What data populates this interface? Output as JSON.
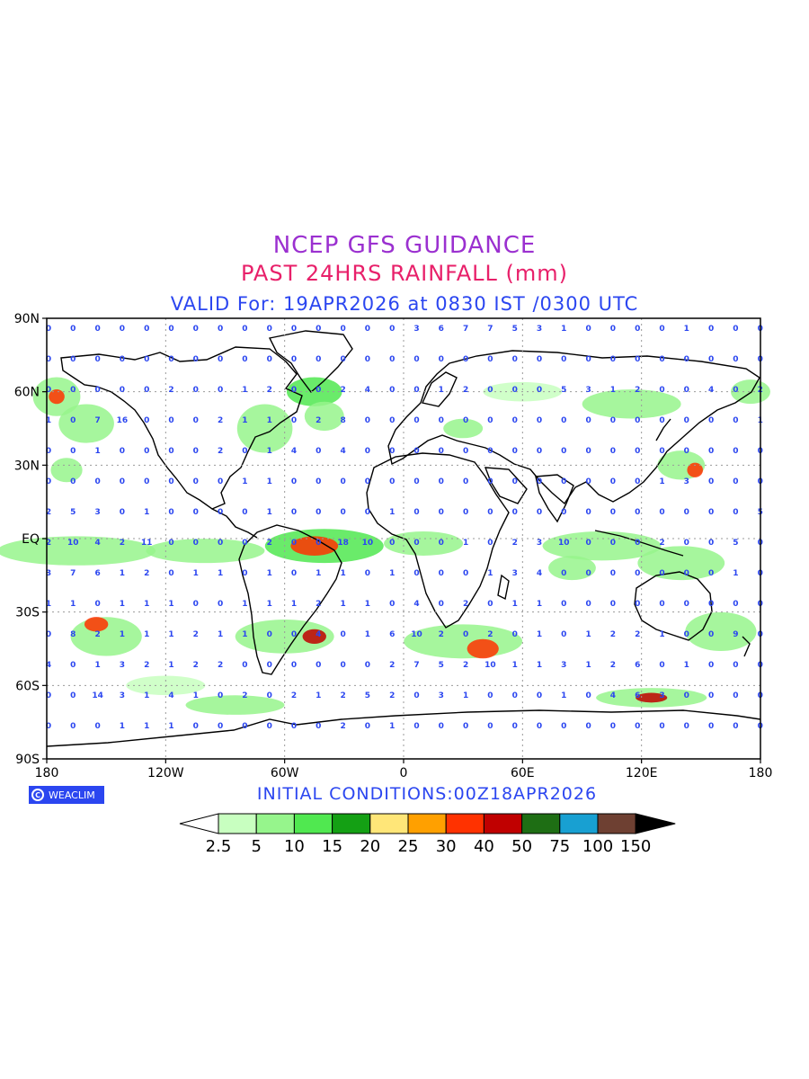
{
  "header": {
    "title": "NCEP GFS GUIDANCE",
    "subtitle": "PAST 24HRS RAINFALL (mm)",
    "valid": "VALID For: 19APR2026 at 0830 IST /0300 UTC"
  },
  "axes": {
    "lat_labels": [
      "90N",
      "60N",
      "30N",
      "EQ",
      "30S",
      "60S",
      "90S"
    ],
    "lat_values": [
      90,
      60,
      30,
      0,
      -30,
      -60,
      -90
    ],
    "lon_labels": [
      "180",
      "120W",
      "60W",
      "0",
      "60E",
      "120E",
      "180"
    ],
    "lon_values": [
      -180,
      -120,
      -60,
      0,
      60,
      120,
      180
    ]
  },
  "footer": {
    "brand": "WEACLIM",
    "initial": "INITIAL CONDITIONS:00Z18APR2026"
  },
  "legend": {
    "labels": [
      "2.5",
      "5",
      "10",
      "15",
      "20",
      "25",
      "30",
      "40",
      "50",
      "75",
      "100",
      "150"
    ],
    "colors": [
      "#ffffff",
      "#c8ffc0",
      "#96f58c",
      "#50e850",
      "#14a014",
      "#ffe678",
      "#ffa000",
      "#ff3200",
      "#c00000",
      "#1e6e14",
      "#18a0d2",
      "#6e4032",
      "#000000"
    ]
  },
  "map_colors": {
    "land_outline": "#000000",
    "grid": "#9a9a9a",
    "value_text": "#2b46f0"
  },
  "grid_values": [
    [
      "0",
      "0",
      "0",
      "0",
      "0",
      "0",
      "0",
      "0",
      "0",
      "0",
      "0",
      "0",
      "0",
      "0",
      "0",
      "3",
      "6",
      "7",
      "7",
      "5",
      "3",
      "1",
      "0",
      "0",
      "0",
      "0",
      "1",
      "0",
      "0",
      "0"
    ],
    [
      "0",
      "0",
      "0",
      "0",
      "0",
      "0",
      "0",
      "0",
      "0",
      "0",
      "0",
      "0",
      "0",
      "0",
      "0",
      "0",
      "0",
      "0",
      "0",
      "0",
      "0",
      "0",
      "0",
      "0",
      "0",
      "0",
      "0",
      "0",
      "0",
      "0"
    ],
    [
      "0",
      "0",
      "0",
      "0",
      "0",
      "2",
      "0",
      "0",
      "1",
      "2",
      "0",
      "0",
      "2",
      "4",
      "0",
      "0",
      "1",
      "2",
      "0",
      "0",
      "0",
      "5",
      "3",
      "1",
      "2",
      "0",
      "0",
      "4",
      "0",
      "2"
    ],
    [
      "1",
      "0",
      "7",
      "16",
      "0",
      "0",
      "0",
      "2",
      "1",
      "1",
      "0",
      "2",
      "8",
      "0",
      "0",
      "0",
      "0",
      "0",
      "0",
      "0",
      "0",
      "0",
      "0",
      "0",
      "0",
      "0",
      "0",
      "0",
      "0",
      "1"
    ],
    [
      "0",
      "0",
      "1",
      "0",
      "0",
      "0",
      "0",
      "2",
      "0",
      "1",
      "4",
      "0",
      "4",
      "0",
      "0",
      "0",
      "0",
      "0",
      "0",
      "0",
      "0",
      "0",
      "0",
      "0",
      "0",
      "0",
      "0",
      "0",
      "0",
      "0"
    ],
    [
      "0",
      "0",
      "0",
      "0",
      "0",
      "0",
      "0",
      "0",
      "1",
      "1",
      "0",
      "0",
      "0",
      "0",
      "0",
      "0",
      "0",
      "0",
      "0",
      "0",
      "0",
      "0",
      "0",
      "0",
      "0",
      "1",
      "3",
      "0",
      "0",
      "0"
    ],
    [
      "2",
      "5",
      "3",
      "0",
      "1",
      "0",
      "0",
      "0",
      "0",
      "1",
      "0",
      "0",
      "0",
      "0",
      "1",
      "0",
      "0",
      "0",
      "0",
      "0",
      "0",
      "0",
      "0",
      "0",
      "0",
      "0",
      "0",
      "0",
      "0",
      "5"
    ],
    [
      "2",
      "10",
      "4",
      "2",
      "11",
      "0",
      "0",
      "0",
      "0",
      "2",
      "0",
      "0",
      "18",
      "10",
      "0",
      "0",
      "0",
      "1",
      "0",
      "2",
      "3",
      "10",
      "0",
      "0",
      "0",
      "2",
      "0",
      "0",
      "5",
      "0"
    ],
    [
      "3",
      "7",
      "6",
      "1",
      "2",
      "0",
      "1",
      "1",
      "0",
      "1",
      "0",
      "1",
      "1",
      "0",
      "1",
      "0",
      "0",
      "0",
      "1",
      "3",
      "4",
      "0",
      "0",
      "0",
      "0",
      "0",
      "0",
      "0",
      "1",
      "0"
    ],
    [
      "1",
      "1",
      "0",
      "1",
      "1",
      "1",
      "0",
      "0",
      "1",
      "1",
      "1",
      "2",
      "1",
      "1",
      "0",
      "4",
      "0",
      "2",
      "0",
      "1",
      "1",
      "0",
      "0",
      "0",
      "0",
      "0",
      "0",
      "0",
      "0",
      "0"
    ],
    [
      "0",
      "8",
      "2",
      "1",
      "1",
      "1",
      "2",
      "1",
      "1",
      "0",
      "0",
      "4",
      "0",
      "1",
      "6",
      "10",
      "2",
      "0",
      "2",
      "0",
      "1",
      "0",
      "1",
      "2",
      "2",
      "1",
      "0",
      "0",
      "9",
      "0"
    ],
    [
      "4",
      "0",
      "1",
      "3",
      "2",
      "1",
      "2",
      "2",
      "0",
      "0",
      "0",
      "0",
      "0",
      "0",
      "2",
      "7",
      "5",
      "2",
      "10",
      "1",
      "1",
      "3",
      "1",
      "2",
      "6",
      "0",
      "1",
      "0",
      "0",
      "0"
    ],
    [
      "0",
      "0",
      "14",
      "3",
      "1",
      "4",
      "1",
      "0",
      "2",
      "0",
      "2",
      "1",
      "2",
      "5",
      "2",
      "0",
      "3",
      "1",
      "0",
      "0",
      "0",
      "1",
      "0",
      "4",
      "6",
      "3",
      "0",
      "0",
      "0",
      "0"
    ],
    [
      "0",
      "0",
      "0",
      "1",
      "1",
      "1",
      "0",
      "0",
      "0",
      "0",
      "0",
      "0",
      "2",
      "0",
      "1",
      "0",
      "0",
      "0",
      "0",
      "0",
      "0",
      "0",
      "0",
      "0",
      "0",
      "0",
      "0",
      "0",
      "0",
      "0"
    ]
  ]
}
